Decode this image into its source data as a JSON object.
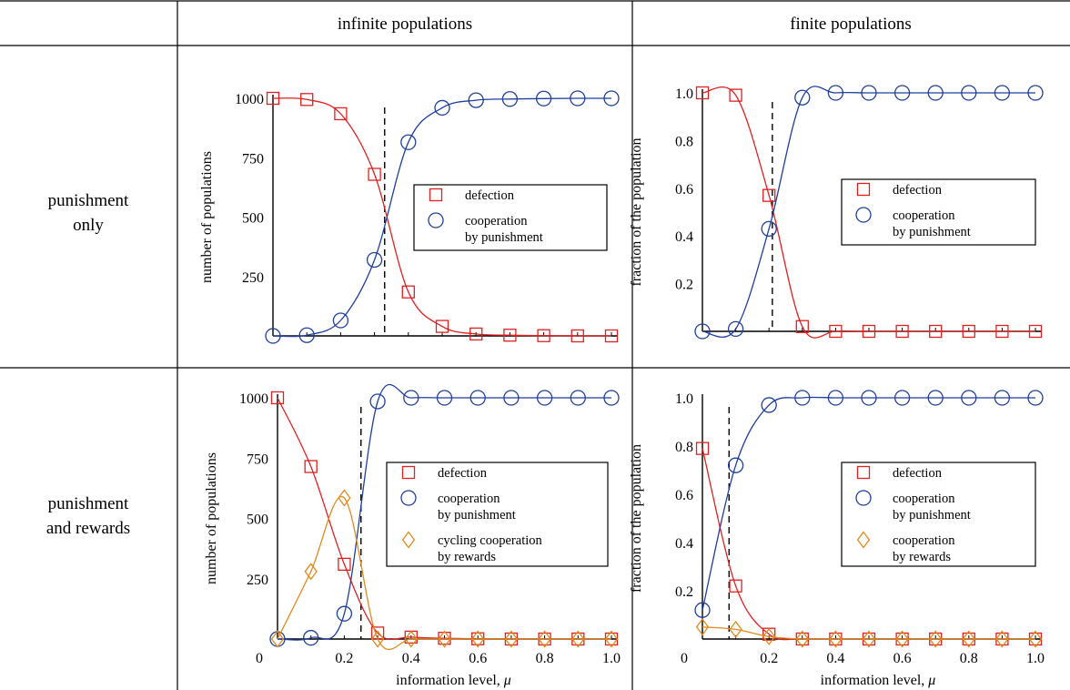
{
  "headers": {
    "infinite": "infinite populations",
    "finite": "finite populations"
  },
  "row_labels": {
    "punishment_only": [
      "punishment",
      "only"
    ],
    "punishment_rewards": [
      "punishment",
      "and rewards"
    ]
  },
  "colors": {
    "defection": "#e02020",
    "cooperation_punishment": "#1f3f9f",
    "cooperation_rewards": "#e08a1e",
    "threshold": "#000000"
  },
  "chart_data": [
    {
      "type": "line",
      "panel": "infinite-punishment-only",
      "xlabel": "",
      "ylabel": "number of populations",
      "xlim": [
        0,
        1.0
      ],
      "ylim": [
        0,
        1000
      ],
      "yticks": [
        250,
        500,
        750,
        1000
      ],
      "xticks_labeled": [],
      "threshold_x": 0.33,
      "series": [
        {
          "name": "defection",
          "marker": "square",
          "color": "#e02020",
          "x": [
            0.0,
            0.1,
            0.2,
            0.3,
            0.4,
            0.5,
            0.6,
            0.7,
            0.8,
            0.9,
            1.0
          ],
          "y": [
            1000,
            995,
            935,
            680,
            185,
            40,
            8,
            3,
            1,
            0,
            0
          ]
        },
        {
          "name": "cooperation\nby punishment",
          "marker": "circle",
          "color": "#1f3f9f",
          "x": [
            0.0,
            0.1,
            0.2,
            0.3,
            0.4,
            0.5,
            0.6,
            0.7,
            0.8,
            0.9,
            1.0
          ],
          "y": [
            0,
            3,
            65,
            320,
            815,
            960,
            992,
            997,
            999,
            1000,
            1000
          ]
        }
      ]
    },
    {
      "type": "line",
      "panel": "finite-punishment-only",
      "xlabel": "",
      "ylabel": "fraction of the population",
      "xlim": [
        0,
        1.0
      ],
      "ylim": [
        0,
        1.0
      ],
      "yticks": [
        0.2,
        0.4,
        0.6,
        0.8,
        1.0
      ],
      "xticks_labeled": [],
      "threshold_x": 0.21,
      "series": [
        {
          "name": "defection",
          "marker": "square",
          "color": "#e02020",
          "x": [
            0.0,
            0.1,
            0.2,
            0.3,
            0.4,
            0.5,
            0.6,
            0.7,
            0.8,
            0.9,
            1.0
          ],
          "y": [
            1.0,
            0.99,
            0.57,
            0.02,
            0.0,
            0.0,
            0.0,
            0.0,
            0.0,
            0.0,
            0.0
          ]
        },
        {
          "name": "cooperation\nby punishment",
          "marker": "circle",
          "color": "#1f3f9f",
          "x": [
            0.0,
            0.1,
            0.2,
            0.3,
            0.4,
            0.5,
            0.6,
            0.7,
            0.8,
            0.9,
            1.0
          ],
          "y": [
            0.0,
            0.01,
            0.43,
            0.98,
            1.0,
            1.0,
            1.0,
            1.0,
            1.0,
            1.0,
            1.0
          ]
        }
      ]
    },
    {
      "type": "line",
      "panel": "infinite-punishment-rewards",
      "xlabel": "information level, μ",
      "ylabel": "number of populations",
      "xlim": [
        0,
        1.0
      ],
      "ylim": [
        0,
        1000
      ],
      "yticks": [
        250,
        500,
        750,
        1000
      ],
      "xticks_labeled": [
        "0.2",
        "0.4",
        "0.6",
        "0.8",
        "1.0"
      ],
      "origin_label": "0",
      "threshold_x": 0.25,
      "series": [
        {
          "name": "defection",
          "marker": "square",
          "color": "#e02020",
          "x": [
            0.0,
            0.1,
            0.2,
            0.3,
            0.4,
            0.5,
            0.6,
            0.7,
            0.8,
            0.9,
            1.0
          ],
          "y": [
            1000,
            715,
            310,
            25,
            8,
            3,
            1,
            0,
            0,
            0,
            0
          ]
        },
        {
          "name": "cooperation\nby punishment",
          "marker": "circle",
          "color": "#1f3f9f",
          "x": [
            0.0,
            0.1,
            0.2,
            0.3,
            0.4,
            0.5,
            0.6,
            0.7,
            0.8,
            0.9,
            1.0
          ],
          "y": [
            0,
            5,
            105,
            985,
            1000,
            1000,
            1000,
            1000,
            1000,
            1000,
            1000
          ]
        },
        {
          "name": "cycling cooperation\nby rewards",
          "marker": "diamond",
          "color": "#e08a1e",
          "x": [
            0.0,
            0.1,
            0.2,
            0.3,
            0.4,
            0.5,
            0.6,
            0.7,
            0.8,
            0.9,
            1.0
          ],
          "y": [
            0,
            280,
            585,
            0,
            0,
            0,
            0,
            0,
            0,
            0,
            0
          ]
        }
      ]
    },
    {
      "type": "line",
      "panel": "finite-punishment-rewards",
      "xlabel": "information level, μ",
      "ylabel": "fraction of the population",
      "xlim": [
        0,
        1.0
      ],
      "ylim": [
        0,
        1.0
      ],
      "yticks": [
        0.2,
        0.4,
        0.6,
        0.8,
        1.0
      ],
      "xticks_labeled": [
        "0.2",
        "0.4",
        "0.6",
        "0.8",
        "1.0"
      ],
      "origin_label": "0",
      "threshold_x": 0.08,
      "series": [
        {
          "name": "defection",
          "marker": "square",
          "color": "#e02020",
          "x": [
            0.0,
            0.1,
            0.2,
            0.3,
            0.4,
            0.5,
            0.6,
            0.7,
            0.8,
            0.9,
            1.0
          ],
          "y": [
            0.79,
            0.22,
            0.02,
            0.0,
            0.0,
            0.0,
            0.0,
            0.0,
            0.0,
            0.0,
            0.0
          ]
        },
        {
          "name": "cooperation\nby punishment",
          "marker": "circle",
          "color": "#1f3f9f",
          "x": [
            0.0,
            0.1,
            0.2,
            0.3,
            0.4,
            0.5,
            0.6,
            0.7,
            0.8,
            0.9,
            1.0
          ],
          "y": [
            0.12,
            0.72,
            0.97,
            1.0,
            1.0,
            1.0,
            1.0,
            1.0,
            1.0,
            1.0,
            1.0
          ]
        },
        {
          "name": "cooperation\nby rewards",
          "marker": "diamond",
          "color": "#e08a1e",
          "x": [
            0.0,
            0.1,
            0.2,
            0.3,
            0.4,
            0.5,
            0.6,
            0.7,
            0.8,
            0.9,
            1.0
          ],
          "y": [
            0.05,
            0.04,
            0.01,
            0.0,
            0.0,
            0.0,
            0.0,
            0.0,
            0.0,
            0.0,
            0.0
          ]
        }
      ]
    }
  ]
}
